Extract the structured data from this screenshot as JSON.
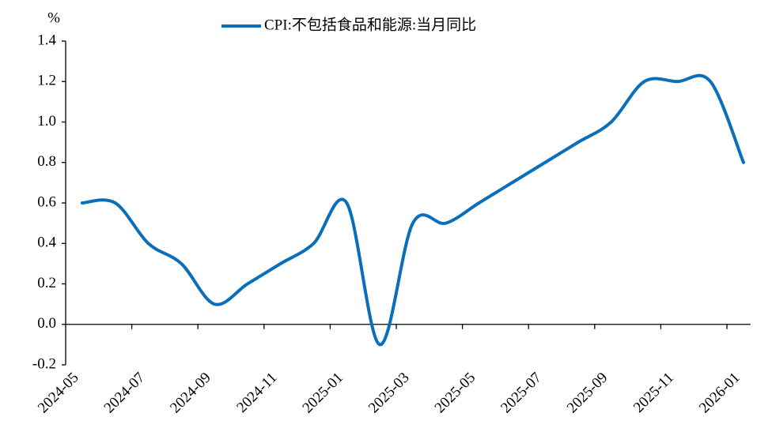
{
  "chart_data": {
    "type": "line",
    "y_unit": "%",
    "categories": [
      "2024-05",
      null,
      "2024-07",
      null,
      "2024-09",
      null,
      "2024-11",
      null,
      "2025-01",
      null,
      "2025-03",
      null,
      "2025-05",
      null,
      "2025-07",
      null,
      "2025-09",
      null,
      "2025-11",
      null,
      "2026-01"
    ],
    "series": [
      {
        "name": "CPI:不包括食品和能源:当月同比",
        "color": "#0a6fba",
        "values": [
          0.6,
          0.6,
          0.4,
          0.3,
          0.1,
          0.2,
          0.3,
          0.4,
          0.6,
          -0.1,
          0.5,
          0.5,
          0.6,
          0.7,
          0.8,
          0.9,
          1.0,
          1.2,
          1.2,
          1.2,
          0.8
        ]
      }
    ],
    "ylim": [
      -0.2,
      1.4
    ],
    "yticks": [
      {
        "value": -0.2,
        "label": "-0.2"
      },
      {
        "value": 0,
        "label": "0.0"
      },
      {
        "value": 0.2,
        "label": "0.2"
      },
      {
        "value": 0.4,
        "label": "0.4"
      },
      {
        "value": 0.6,
        "label": "0.6"
      },
      {
        "value": 0.8,
        "label": "0.8"
      },
      {
        "value": 1,
        "label": "1.0"
      },
      {
        "value": 1.2,
        "label": "1.2"
      },
      {
        "value": 1.4,
        "label": "1.4"
      }
    ],
    "legend": "top"
  }
}
